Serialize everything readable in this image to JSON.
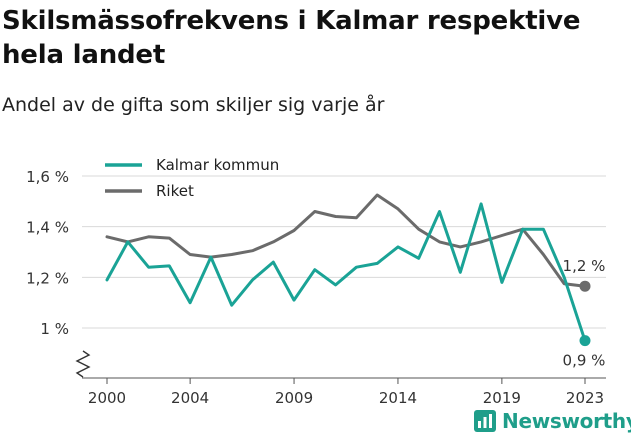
{
  "title": "Skilsmässofrekvens i Kalmar respektive hela landet",
  "subtitle": "Andel av de gifta som skiljer sig varje år",
  "brand": "Newsworthy",
  "colors": {
    "kalmar": "#1aa396",
    "riket": "#6b6b6b",
    "axis": "#555555",
    "grid": "#d9d9d9"
  },
  "chart_data": {
    "type": "line",
    "x": [
      2000,
      2001,
      2002,
      2003,
      2004,
      2005,
      2006,
      2007,
      2008,
      2009,
      2010,
      2011,
      2012,
      2013,
      2014,
      2015,
      2016,
      2017,
      2018,
      2019,
      2020,
      2021,
      2022,
      2023
    ],
    "x_ticks": [
      {
        "value": 2000,
        "label": "2000"
      },
      {
        "value": 2004,
        "label": "2004"
      },
      {
        "value": 2009,
        "label": "2009"
      },
      {
        "value": 2014,
        "label": "2014"
      },
      {
        "value": 2019,
        "label": "2019"
      },
      {
        "value": 2023,
        "label": "2023"
      }
    ],
    "y_ticks": [
      {
        "value": 1.0,
        "label": "1 %"
      },
      {
        "value": 1.2,
        "label": "1,2 %"
      },
      {
        "value": 1.4,
        "label": "1,4 %"
      },
      {
        "value": 1.6,
        "label": "1,6 %"
      }
    ],
    "ylim": [
      0.9,
      1.65
    ],
    "y_axis_break": true,
    "grid": "horizontal",
    "legend_position": "top-left",
    "series": [
      {
        "name": "Kalmar kommun",
        "color": "#1aa396",
        "values": [
          1.19,
          1.34,
          1.24,
          1.245,
          1.1,
          1.28,
          1.09,
          1.19,
          1.26,
          1.11,
          1.23,
          1.17,
          1.24,
          1.255,
          1.32,
          1.275,
          1.46,
          1.22,
          1.49,
          1.18,
          1.39,
          1.39,
          1.2,
          0.95
        ],
        "end_label": "0,9 %"
      },
      {
        "name": "Riket",
        "color": "#6b6b6b",
        "values": [
          1.36,
          1.34,
          1.36,
          1.355,
          1.29,
          1.28,
          1.29,
          1.305,
          1.34,
          1.385,
          1.46,
          1.44,
          1.435,
          1.525,
          1.47,
          1.39,
          1.34,
          1.32,
          1.34,
          1.365,
          1.39,
          1.29,
          1.175,
          1.165
        ],
        "end_label": "1,2 %"
      }
    ]
  }
}
